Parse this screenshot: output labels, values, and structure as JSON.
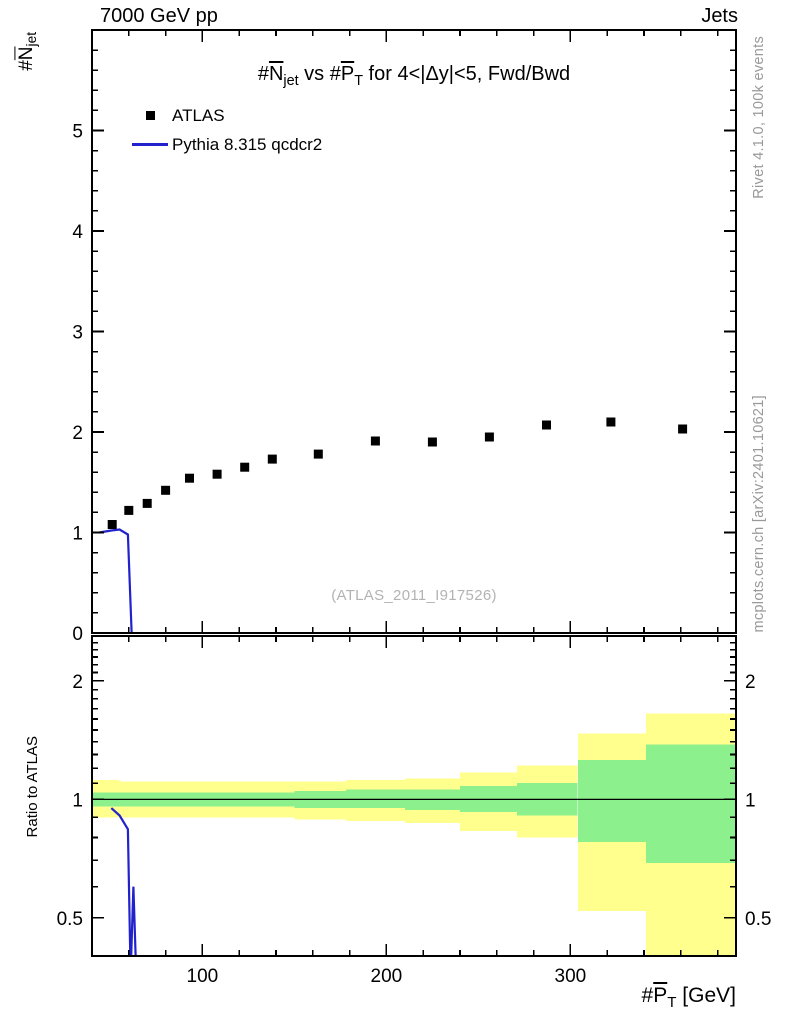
{
  "header": {
    "left": "7000 GeV pp",
    "right": "Jets"
  },
  "side_captions": {
    "top_right": "Rivet 4.1.0, 100k events",
    "bottom_right": "mcplots.cern.ch [arXiv:2401.10621]"
  },
  "main": {
    "title_html": "#<span class='ov'>N</span><sub>jet</sub> vs #<span class='ov'>P</span><sub>T</sub> for 4&lt;|Δy|&lt;5, Fwd/Bwd",
    "ylabel_html": "#<span class='ov'>N</span><sub>jet</sub>",
    "watermark": "(ATLAS_2011_I917526)"
  },
  "ratio": {
    "ylabel": "Ratio to ATLAS"
  },
  "xaxis": {
    "title_html": "#<span class='ov'>P</span><sub>T</sub> [GeV]"
  },
  "legend": [
    {
      "label": "ATLAS",
      "marker": "black-square"
    },
    {
      "label": "Pythia 8.315 qcdcr2",
      "marker": "blue-line"
    }
  ],
  "chart_data": {
    "type": "scatter",
    "title": "#Njet vs #PT for 4<|dy|<5, Fwd/Bwd",
    "xlabel": "#PT [GeV]",
    "ylabel": "#Njet",
    "xlim": [
      40,
      390
    ],
    "xticks": [
      100,
      200,
      300
    ],
    "x_minor_step": 20,
    "band_colors": {
      "outer": "#ffff8e",
      "inner": "#8cf08c"
    },
    "line_color": "#2222cc",
    "main_panel": {
      "ylim": [
        0,
        6
      ],
      "yticks": [
        0,
        1,
        2,
        3,
        4,
        5
      ],
      "y_minor_step": 0.2,
      "atlas": {
        "name": "ATLAS",
        "x": [
          51,
          60,
          70,
          80,
          93,
          108,
          123,
          138,
          163,
          194,
          225,
          256,
          287,
          322,
          361
        ],
        "y": [
          1.08,
          1.22,
          1.29,
          1.42,
          1.54,
          1.58,
          1.65,
          1.73,
          1.78,
          1.91,
          1.9,
          1.95,
          2.07,
          2.1,
          2.03
        ]
      },
      "pythia": {
        "name": "Pythia 8.315 qcdcr2",
        "x": [
          44,
          50.5,
          55,
          59.5,
          61.5
        ],
        "y": [
          1.0,
          1.02,
          1.03,
          0.98,
          0.01
        ]
      }
    },
    "ratio_panel": {
      "log_y": true,
      "ylim": [
        0.4,
        2.6
      ],
      "yticks": [
        0.5,
        1,
        2
      ],
      "ytick_labels": [
        "0.5",
        "1",
        "2"
      ],
      "y_minors": [
        0.6,
        0.7,
        0.8,
        0.9,
        1.1,
        1.2,
        1.3,
        1.4,
        1.5,
        1.6,
        1.7,
        1.8,
        1.9,
        2.1,
        2.2,
        2.3,
        2.4,
        2.5
      ],
      "reference": 1,
      "band_edges": [
        40,
        55,
        65,
        75,
        86,
        100,
        115,
        131,
        150,
        178,
        210,
        240,
        271,
        304,
        341,
        390
      ],
      "yellow_lo": [
        0.9,
        0.9,
        0.9,
        0.9,
        0.9,
        0.9,
        0.9,
        0.9,
        0.89,
        0.88,
        0.87,
        0.83,
        0.8,
        0.52,
        0.38
      ],
      "yellow_hi": [
        1.12,
        1.11,
        1.11,
        1.11,
        1.11,
        1.11,
        1.11,
        1.11,
        1.11,
        1.12,
        1.13,
        1.17,
        1.22,
        1.47,
        1.65
      ],
      "green_lo": [
        0.96,
        0.96,
        0.96,
        0.96,
        0.96,
        0.96,
        0.96,
        0.96,
        0.95,
        0.95,
        0.94,
        0.93,
        0.91,
        0.78,
        0.69
      ],
      "green_hi": [
        1.04,
        1.04,
        1.04,
        1.04,
        1.04,
        1.04,
        1.04,
        1.04,
        1.05,
        1.06,
        1.06,
        1.08,
        1.1,
        1.26,
        1.38
      ],
      "pythia_ratio": {
        "x": [
          50.5,
          55,
          59.5,
          61,
          62.5,
          64
        ],
        "y": [
          0.95,
          0.91,
          0.84,
          0.36,
          0.6,
          0.36
        ]
      }
    }
  }
}
